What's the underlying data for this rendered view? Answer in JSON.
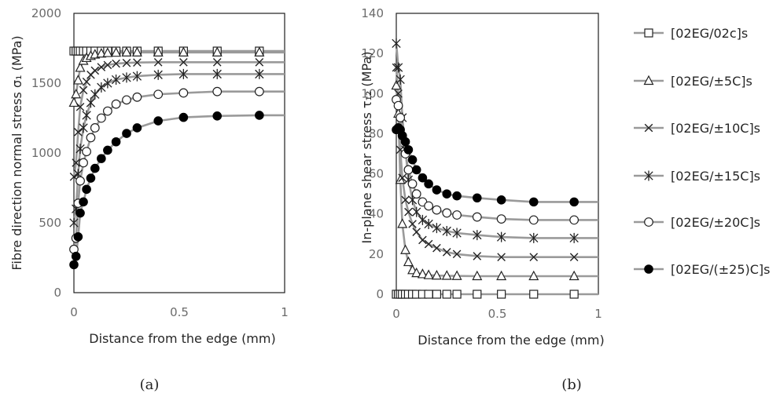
{
  "chart_data": [
    {
      "type": "line",
      "panel": "(a)",
      "xlabel": "Distance from the edge (mm)",
      "ylabel": "Fibre direction normal stress σ₁ (MPa)",
      "xlim": [
        0,
        1
      ],
      "ylim": [
        0,
        2000
      ],
      "xticks": [
        "0",
        "0.5",
        "1"
      ],
      "yticks": [
        "0",
        "500",
        "1000",
        "1500",
        "2000"
      ],
      "x": [
        0,
        0.01,
        0.02,
        0.03,
        0.045,
        0.06,
        0.08,
        0.1,
        0.13,
        0.16,
        0.2,
        0.25,
        0.3,
        0.4,
        0.52,
        0.68,
        0.88
      ],
      "series": [
        {
          "name": "[02EG/02c]s",
          "marker": "square",
          "values": [
            1730,
            1730,
            1730,
            1730,
            1730,
            1730,
            1730,
            1730,
            1730,
            1730,
            1730,
            1730,
            1730,
            1730,
            1730,
            1730,
            1730
          ]
        },
        {
          "name": "[02EG/±5C]s",
          "marker": "triangle",
          "values": [
            1360,
            1420,
            1520,
            1610,
            1660,
            1680,
            1695,
            1705,
            1712,
            1716,
            1718,
            1720,
            1720,
            1720,
            1720,
            1720,
            1720
          ]
        },
        {
          "name": "[02EG/±10C]s",
          "marker": "x",
          "values": [
            830,
            930,
            1150,
            1330,
            1450,
            1510,
            1560,
            1590,
            1615,
            1630,
            1640,
            1645,
            1648,
            1650,
            1650,
            1650,
            1650
          ]
        },
        {
          "name": "[02EG/±15C]s",
          "marker": "star",
          "values": [
            500,
            600,
            850,
            1030,
            1180,
            1270,
            1360,
            1420,
            1470,
            1500,
            1525,
            1540,
            1550,
            1560,
            1565,
            1565,
            1565
          ]
        },
        {
          "name": "[02EG/±20C]s",
          "marker": "circle-open",
          "values": [
            310,
            390,
            640,
            800,
            930,
            1010,
            1110,
            1180,
            1250,
            1300,
            1350,
            1380,
            1400,
            1420,
            1430,
            1440,
            1440
          ]
        },
        {
          "name": "[02EG/(±25)C]s",
          "marker": "circle-filled",
          "values": [
            200,
            260,
            400,
            570,
            650,
            740,
            820,
            890,
            960,
            1020,
            1080,
            1140,
            1180,
            1230,
            1255,
            1265,
            1270
          ]
        }
      ]
    },
    {
      "type": "line",
      "panel": "(b)",
      "xlabel": "Distance from the edge (mm)",
      "ylabel": "In-plane shear stress τ₁₂ (MPa)",
      "xlim": [
        0,
        1
      ],
      "ylim": [
        0,
        140
      ],
      "xticks": [
        "0",
        "0.5",
        "1"
      ],
      "yticks": [
        "0",
        "20",
        "40",
        "60",
        "80",
        "100",
        "120",
        "140"
      ],
      "x": [
        0,
        0.01,
        0.02,
        0.03,
        0.045,
        0.06,
        0.08,
        0.1,
        0.13,
        0.16,
        0.2,
        0.25,
        0.3,
        0.4,
        0.52,
        0.68,
        0.88
      ],
      "series": [
        {
          "name": "[02EG/02c]s",
          "marker": "square",
          "values": [
            0,
            0,
            0,
            0,
            0,
            0,
            0,
            0,
            0,
            0,
            0,
            0,
            0,
            0,
            0,
            0,
            0
          ]
        },
        {
          "name": "[02EG/±5C]s",
          "marker": "triangle",
          "values": [
            104,
            90,
            57,
            35,
            22,
            16,
            12,
            10.5,
            10,
            9.5,
            9.3,
            9.2,
            9.1,
            9,
            9,
            9,
            9
          ]
        },
        {
          "name": "[02EG/±10C]s",
          "marker": "x",
          "values": [
            113,
            100,
            72,
            58,
            47,
            41,
            35,
            31,
            27,
            25,
            23,
            21,
            20,
            19,
            18.5,
            18.5,
            18.5
          ]
        },
        {
          "name": "[02EG/±15C]s",
          "marker": "star",
          "values": [
            125,
            113,
            107,
            88,
            72,
            57,
            47,
            41,
            37,
            35,
            33,
            31.5,
            30.5,
            29.5,
            28.5,
            28,
            28
          ]
        },
        {
          "name": "[02EG/±20C]s",
          "marker": "circle-open",
          "values": [
            97,
            94,
            88,
            79,
            70,
            62,
            55,
            50,
            46,
            44,
            42,
            40.5,
            39.5,
            38.5,
            37.5,
            37,
            37
          ]
        },
        {
          "name": "[02EG/(±25)C]s",
          "marker": "circle-filled",
          "values": [
            82,
            83,
            82,
            79,
            76,
            72,
            67,
            62,
            58,
            55,
            52,
            50,
            49,
            48,
            47,
            46,
            46
          ]
        }
      ]
    }
  ],
  "captions": {
    "a": "(a)",
    "b": "(b)"
  },
  "colors": {
    "line": "#9a9a9a",
    "axis": "#1f1f1f",
    "tick_text": "#6b6b6b",
    "marker_fill_filled": "#000000",
    "marker_fill_open": "#ffffff"
  }
}
